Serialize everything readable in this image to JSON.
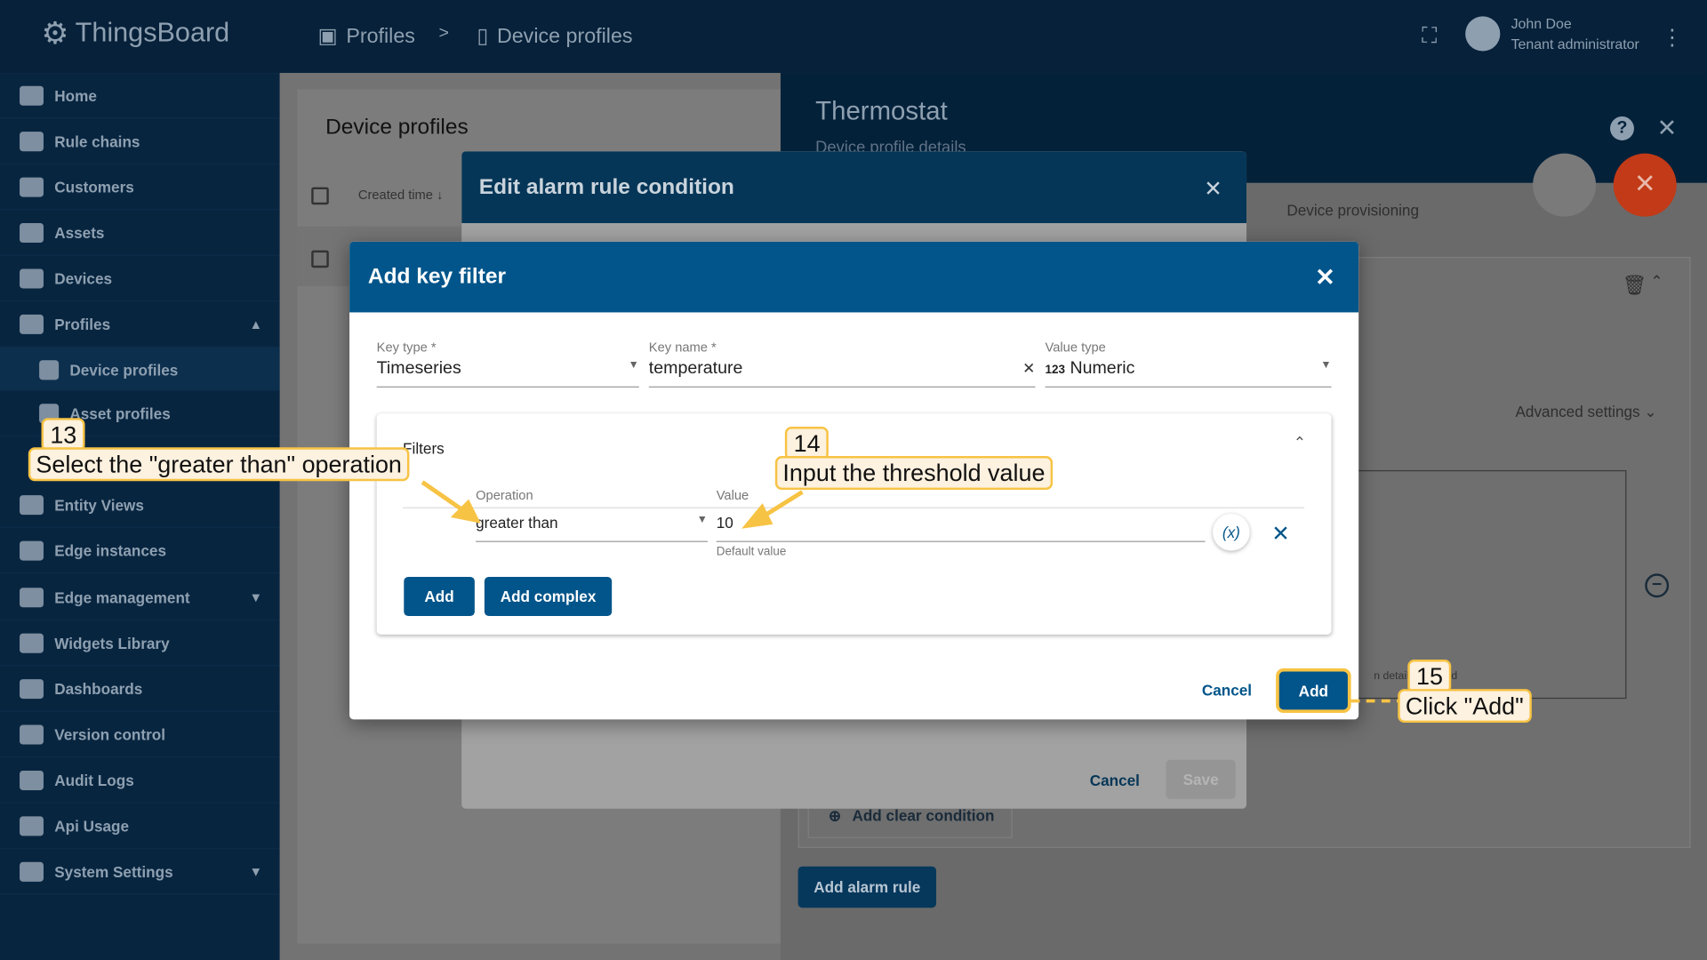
{
  "header": {
    "app_name": "ThingsBoard",
    "breadcrumb": [
      "Profiles",
      "Device profiles"
    ],
    "separator": ">",
    "user_name": "John Doe",
    "user_role": "Tenant administrator"
  },
  "sidebar": {
    "items": [
      {
        "label": "Home"
      },
      {
        "label": "Rule chains"
      },
      {
        "label": "Customers"
      },
      {
        "label": "Assets"
      },
      {
        "label": "Devices"
      },
      {
        "label": "Profiles",
        "expanded": true
      },
      {
        "label": "Device profiles",
        "selected": true
      },
      {
        "label": "Asset profiles"
      },
      {
        "label": "Entity Views"
      },
      {
        "label": "Edge instances"
      },
      {
        "label": "Edge management"
      },
      {
        "label": "Widgets Library"
      },
      {
        "label": "Dashboards"
      },
      {
        "label": "Version control"
      },
      {
        "label": "Audit Logs"
      },
      {
        "label": "Api Usage"
      },
      {
        "label": "System Settings"
      }
    ]
  },
  "list": {
    "title": "Device profiles",
    "col_created": "Created time"
  },
  "details": {
    "title": "Thermostat",
    "subtitle": "Device profile details",
    "tab": "Device provisioning",
    "advanced": "Advanced settings",
    "add_clear": "Add clear condition",
    "add_alarm_rule": "Add alarm rule",
    "partial_text": "n details",
    "partial_text2": "rd"
  },
  "alarm_dialog": {
    "title": "Edit alarm rule condition",
    "cancel": "Cancel",
    "save": "Save"
  },
  "key_filter": {
    "title": "Add key filter",
    "key_type_label": "Key type *",
    "key_type": "Timeseries",
    "key_name_label": "Key name *",
    "key_name": "temperature",
    "value_type_label": "Value type",
    "value_type_icon": "123",
    "value_type": "Numeric",
    "filters_label": "Filters",
    "operation_label": "Operation",
    "operation": "greater than",
    "value_label": "Value",
    "value": "10",
    "value_hint": "Default value",
    "dynamic": "(x)",
    "add": "Add",
    "add_complex": "Add complex",
    "cancel": "Cancel",
    "submit": "Add"
  },
  "annotations": [
    {
      "num": "13",
      "text": "Select the \"greater than\" operation"
    },
    {
      "num": "14",
      "text": "Input the threshold value"
    },
    {
      "num": "15",
      "text": "Click \"Add\""
    }
  ],
  "colors": {
    "primary": "#02558a",
    "callout_border": "#f7c344",
    "callout_bg": "#fdf1df",
    "fab": "#d13b16"
  }
}
